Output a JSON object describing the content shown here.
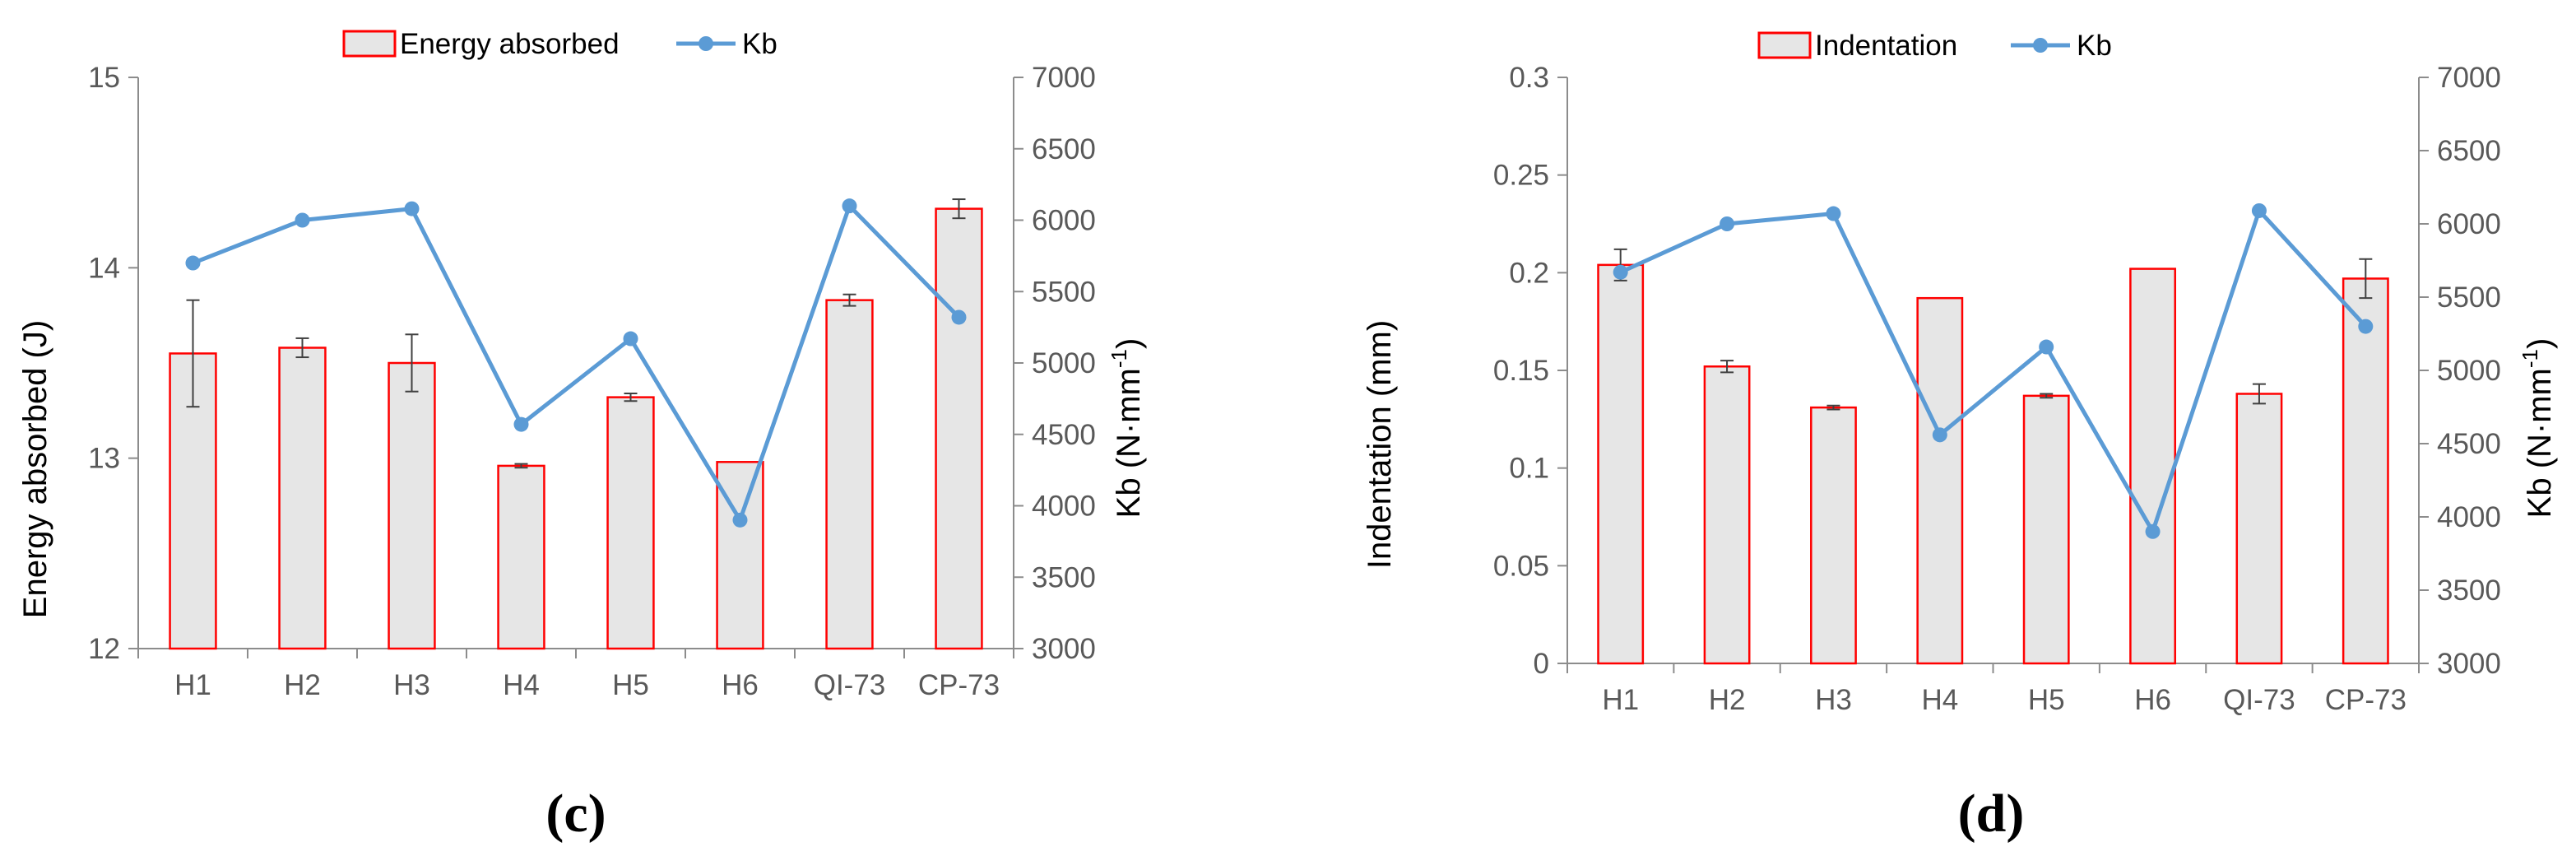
{
  "colors": {
    "bar_fill": "#e6e6e6",
    "bar_stroke": "#ff0000",
    "line": "#5b9bd5",
    "axis": "#8c8c8c",
    "error_bar": "#404040",
    "tick_text": "#595959"
  },
  "chart_data": [
    {
      "type": "bar+line",
      "panel_label": "(c)",
      "categories": [
        "H1",
        "H2",
        "H3",
        "H4",
        "H5",
        "H6",
        "QI-73",
        "CP-73"
      ],
      "legend": [
        "Energy absorbed",
        "Kb"
      ],
      "y_left": {
        "label": "Energy absorbed  (J)",
        "lim": [
          12,
          15
        ],
        "ticks": [
          12,
          13,
          14,
          15
        ],
        "tick_labels": [
          "12",
          "13",
          "14",
          "15"
        ]
      },
      "y_right": {
        "label_main": "Kb (N·mm",
        "label_sup": "-1",
        "label_end": ")",
        "lim": [
          3000,
          7000
        ],
        "ticks": [
          3000,
          3500,
          4000,
          4500,
          5000,
          5500,
          6000,
          6500,
          7000
        ],
        "tick_labels": [
          "3000",
          "3500",
          "4000",
          "4500",
          "5000",
          "5500",
          "6000",
          "6500",
          "7000"
        ]
      },
      "series": [
        {
          "name": "Energy absorbed",
          "kind": "bar",
          "axis": "left",
          "values": [
            13.55,
            13.58,
            13.5,
            12.96,
            13.32,
            12.98,
            13.83,
            14.31
          ],
          "errors": [
            0.28,
            0.05,
            0.15,
            0.01,
            0.02,
            0.0,
            0.03,
            0.05
          ]
        },
        {
          "name": "Kb",
          "kind": "line",
          "axis": "right",
          "values": [
            5700,
            6000,
            6080,
            4570,
            5170,
            3900,
            6100,
            5320
          ]
        }
      ]
    },
    {
      "type": "bar+line",
      "panel_label": "(d)",
      "categories": [
        "H1",
        "H2",
        "H3",
        "H4",
        "H5",
        "H6",
        "QI-73",
        "CP-73"
      ],
      "legend": [
        "Indentation",
        "Kb"
      ],
      "y_left": {
        "label": "Indentation (mm)",
        "lim": [
          0,
          0.3
        ],
        "ticks": [
          0,
          0.05,
          0.1,
          0.15,
          0.2,
          0.25,
          0.3
        ],
        "tick_labels": [
          "0",
          "0.05",
          "0.1",
          "0.15",
          "0.2",
          "0.25",
          "0.3"
        ]
      },
      "y_right": {
        "label_main": "Kb (N·mm",
        "label_sup": "-1",
        "label_end": ")",
        "lim": [
          3000,
          7000
        ],
        "ticks": [
          3000,
          3500,
          4000,
          4500,
          5000,
          5500,
          6000,
          6500,
          7000
        ],
        "tick_labels": [
          "3000",
          "3500",
          "4000",
          "4500",
          "5000",
          "5500",
          "6000",
          "6500",
          "7000"
        ]
      },
      "series": [
        {
          "name": "Indentation",
          "kind": "bar",
          "axis": "left",
          "values": [
            0.204,
            0.152,
            0.131,
            0.187,
            0.137,
            0.202,
            0.138,
            0.197
          ],
          "errors": [
            0.008,
            0.003,
            0.001,
            0.0,
            0.001,
            0.0,
            0.005,
            0.01
          ]
        },
        {
          "name": "Kb",
          "kind": "line",
          "axis": "right",
          "values": [
            5670,
            6000,
            6070,
            4560,
            5160,
            3900,
            6090,
            5300
          ]
        }
      ]
    }
  ]
}
